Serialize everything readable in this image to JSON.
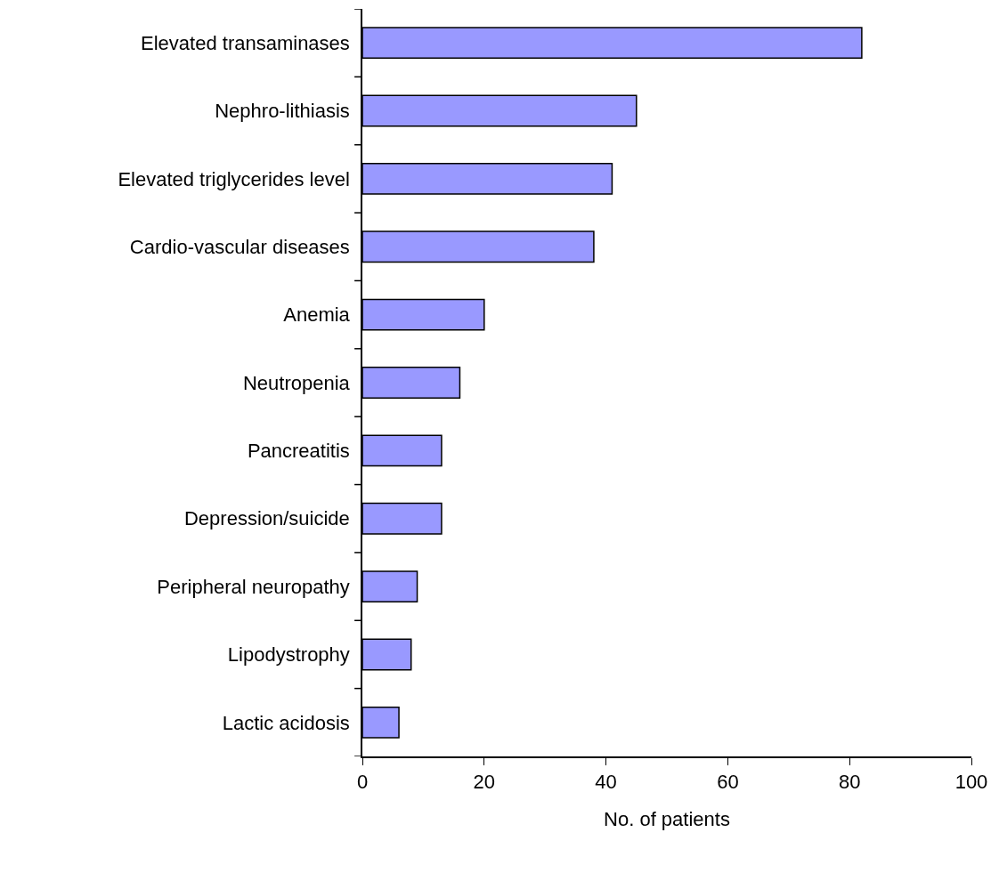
{
  "chart_data": {
    "type": "bar",
    "orientation": "horizontal",
    "xlabel": "No. of patients",
    "categories": [
      "Elevated transaminases",
      "Nephro-lithiasis",
      "Elevated triglycerides level",
      "Cardio-vascular diseases",
      "Anemia",
      "Neutropenia",
      "Pancreatitis",
      "Depression/suicide",
      "Peripheral neuropathy",
      "Lipodystrophy",
      "Lactic acidosis"
    ],
    "values": [
      82,
      45,
      41,
      38,
      20,
      16,
      13,
      13,
      9,
      8,
      6
    ],
    "color": "#9999ff",
    "xlim": [
      0,
      100
    ],
    "xticks": [
      0,
      20,
      40,
      60,
      80,
      100
    ],
    "grid": false
  }
}
